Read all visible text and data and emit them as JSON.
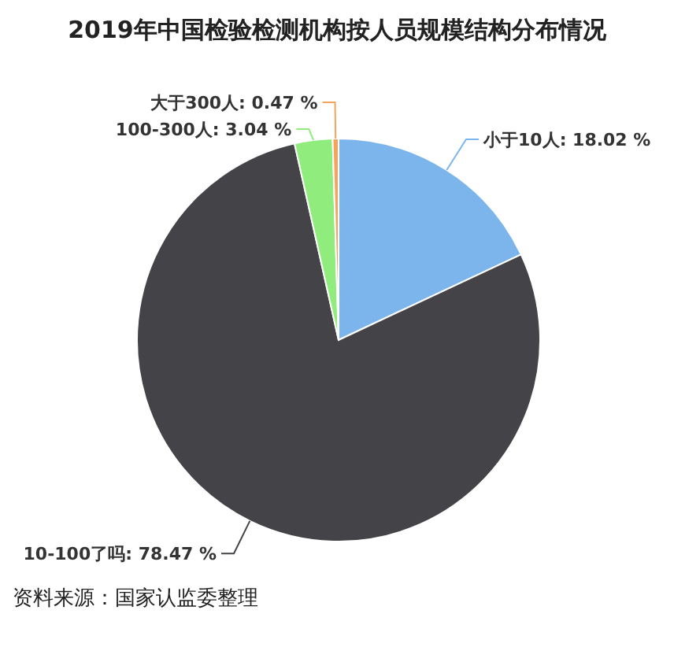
{
  "chart_data": {
    "type": "pie",
    "title": "2019年中国检验检测机构按人员规模结构分布情况",
    "categories": [
      "小于10人",
      "10-100了吗",
      "100-300人",
      "大于300人"
    ],
    "values": [
      18.02,
      78.47,
      3.04,
      0.47
    ],
    "value_labels": [
      ": 18.02 %",
      ": 78.47 %",
      ": 3.04 %",
      ": 0.47 %"
    ],
    "colors": [
      "#7cb5ec",
      "#434348",
      "#90ed7d",
      "#f7a35c"
    ],
    "legend": false,
    "annotations": [
      "资料来源：国家认监委整理"
    ]
  }
}
